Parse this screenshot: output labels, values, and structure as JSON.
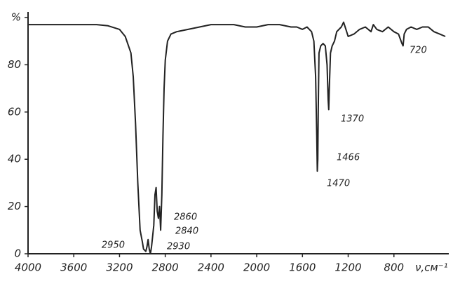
{
  "chart_data": {
    "type": "line",
    "color": "#222222",
    "x": [
      4000,
      3800,
      3600,
      3400,
      3300,
      3200,
      3150,
      3100,
      3080,
      3060,
      3040,
      3020,
      3000,
      2990,
      2970,
      2960,
      2950,
      2940,
      2930,
      2920,
      2900,
      2890,
      2880,
      2870,
      2860,
      2850,
      2840,
      2830,
      2820,
      2810,
      2800,
      2780,
      2750,
      2700,
      2600,
      2500,
      2400,
      2300,
      2200,
      2100,
      2000,
      1900,
      1800,
      1700,
      1650,
      1600,
      1560,
      1520,
      1500,
      1485,
      1475,
      1470,
      1466,
      1462,
      1455,
      1440,
      1420,
      1400,
      1385,
      1375,
      1370,
      1365,
      1355,
      1340,
      1320,
      1300,
      1260,
      1240,
      1220,
      1200,
      1150,
      1100,
      1050,
      1000,
      980,
      950,
      900,
      850,
      800,
      760,
      730,
      720,
      710,
      690,
      650,
      600,
      550,
      500,
      450,
      400,
      350
    ],
    "values": [
      97,
      97,
      97,
      97,
      96.5,
      95,
      92,
      85,
      75,
      55,
      30,
      10,
      5,
      2,
      1,
      3,
      6,
      2,
      0,
      3,
      12,
      25,
      28,
      18,
      15,
      20,
      10,
      25,
      50,
      70,
      82,
      90,
      93,
      94,
      95,
      96,
      97,
      97,
      97,
      96,
      96,
      97,
      97,
      96,
      96,
      95,
      96,
      94,
      90,
      75,
      50,
      35,
      40,
      60,
      85,
      88,
      89,
      88,
      80,
      65,
      61,
      70,
      85,
      88,
      90,
      94,
      96,
      98,
      95,
      92,
      93,
      95,
      96,
      94,
      97,
      95,
      94,
      96,
      94,
      93,
      89,
      88,
      93,
      95,
      96,
      95,
      96,
      96,
      94,
      93,
      92
    ],
    "xlim": [
      4000,
      320
    ],
    "ylim": [
      0,
      100
    ],
    "xticks": [
      4000,
      3600,
      3200,
      2800,
      2400,
      2000,
      1600,
      1200,
      800
    ],
    "yticks": [
      0,
      20,
      40,
      60,
      80,
      {
        "value": 100,
        "label": "%"
      }
    ],
    "xlabel": "ν,см⁻¹",
    "annotations": [
      "2950",
      "2930",
      "2860",
      "2840",
      "1470",
      "1466",
      "1370",
      "720"
    ]
  }
}
